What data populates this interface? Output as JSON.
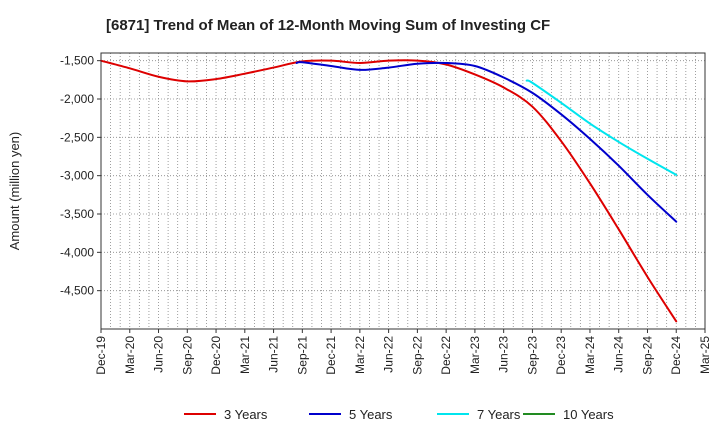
{
  "chart_data": {
    "type": "line",
    "title": "[6871]  Trend of Mean of 12-Month Moving Sum of Investing CF",
    "xlabel": "",
    "ylabel": "Amount (million yen)",
    "ylim": [
      -5000,
      -1400
    ],
    "yticks": [
      -1500,
      -2000,
      -2500,
      -3000,
      -3500,
      -4000,
      -4500
    ],
    "ytick_labels": [
      "-1,500",
      "-2,000",
      "-2,500",
      "-3,000",
      "-3,500",
      "-4,000",
      "-4,500"
    ],
    "x_categories": [
      "Dec-19",
      "Mar-20",
      "Jun-20",
      "Sep-20",
      "Dec-20",
      "Mar-21",
      "Jun-21",
      "Sep-21",
      "Dec-21",
      "Mar-22",
      "Jun-22",
      "Sep-22",
      "Dec-22",
      "Mar-23",
      "Jun-23",
      "Sep-23",
      "Dec-23",
      "Mar-24",
      "Jun-24",
      "Sep-24",
      "Dec-24",
      "Mar-25"
    ],
    "grid": true,
    "legend_position": "bottom",
    "series": [
      {
        "name": "3 Years",
        "color": "#dd0000",
        "points": [
          [
            0,
            -1500
          ],
          [
            1,
            -1600
          ],
          [
            2,
            -1710
          ],
          [
            3,
            -1770
          ],
          [
            4,
            -1740
          ],
          [
            5,
            -1670
          ],
          [
            6,
            -1590
          ],
          [
            7,
            -1510
          ],
          [
            8,
            -1500
          ],
          [
            9,
            -1530
          ],
          [
            10,
            -1500
          ],
          [
            11,
            -1500
          ],
          [
            12,
            -1550
          ],
          [
            13,
            -1680
          ],
          [
            14,
            -1850
          ],
          [
            15,
            -2100
          ],
          [
            16,
            -2550
          ],
          [
            17,
            -3100
          ],
          [
            18,
            -3700
          ],
          [
            19,
            -4320
          ],
          [
            20,
            -4900
          ]
        ]
      },
      {
        "name": "5 Years",
        "color": "#0000cc",
        "points": [
          [
            6.8,
            -1530
          ],
          [
            7,
            -1520
          ],
          [
            8,
            -1570
          ],
          [
            9,
            -1620
          ],
          [
            10,
            -1590
          ],
          [
            11,
            -1540
          ],
          [
            12,
            -1530
          ],
          [
            13,
            -1570
          ],
          [
            14,
            -1720
          ],
          [
            15,
            -1920
          ],
          [
            16,
            -2200
          ],
          [
            17,
            -2520
          ],
          [
            18,
            -2870
          ],
          [
            19,
            -3250
          ],
          [
            20,
            -3600
          ]
        ]
      },
      {
        "name": "7 Years",
        "color": "#00e5ee",
        "points": [
          [
            14.8,
            -1760
          ],
          [
            15,
            -1790
          ],
          [
            16,
            -2050
          ],
          [
            17,
            -2320
          ],
          [
            18,
            -2560
          ],
          [
            19,
            -2780
          ],
          [
            20,
            -2990
          ]
        ]
      },
      {
        "name": "10 Years",
        "color": "#228b22",
        "points": []
      }
    ]
  }
}
